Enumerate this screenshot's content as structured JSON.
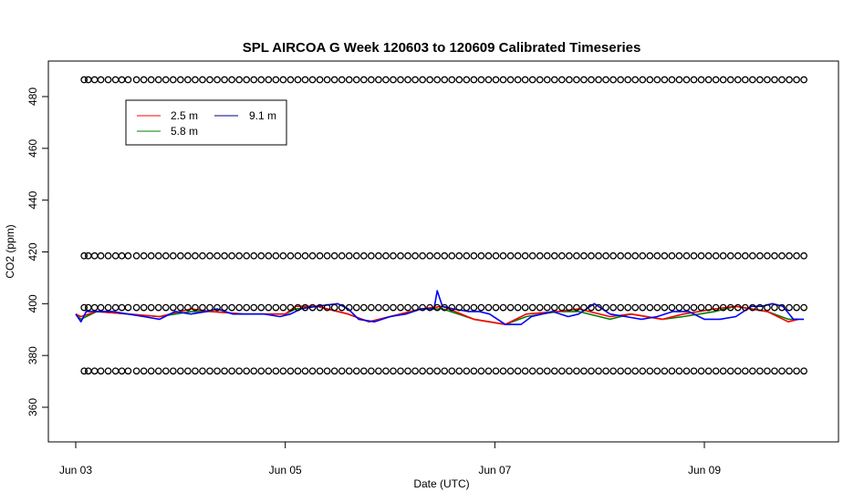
{
  "chart_data": {
    "type": "line",
    "title": "SPL AIRCOA G  Week 120603 to 120609  Calibrated Timeseries",
    "xlabel": "Date (UTC)",
    "ylabel": "CO2 (ppm)",
    "x_tick_labels": [
      "Jun 03",
      "Jun 05",
      "Jun 07",
      "Jun 09"
    ],
    "x_tick_values": [
      0,
      2,
      4,
      6
    ],
    "x_range": [
      0,
      7
    ],
    "y_tick_labels": [
      "360",
      "380",
      "400",
      "420",
      "440",
      "460",
      "480"
    ],
    "y_tick_values": [
      360,
      380,
      400,
      420,
      440,
      460,
      480
    ],
    "y_range": [
      354,
      489
    ],
    "grid": false,
    "legend": {
      "placement": "top-left",
      "entries": [
        {
          "label": "2.5 m",
          "color": "#ff0000"
        },
        {
          "label": "9.1 m",
          "color": "#000080"
        },
        {
          "label": "5.8 m",
          "color": "#008000"
        }
      ]
    },
    "series": [
      {
        "name": "2.5 m",
        "color": "#ff0000",
        "x": [
          0.0,
          0.05,
          0.2,
          0.5,
          0.8,
          1.1,
          1.3,
          1.6,
          2.0,
          2.1,
          2.3,
          2.6,
          2.8,
          3.1,
          3.3,
          3.5,
          3.8,
          4.1,
          4.3,
          4.6,
          4.8,
          5.1,
          5.3,
          5.6,
          5.8,
          6.1,
          6.3,
          6.6,
          6.8,
          6.9
        ],
        "y": [
          396,
          395,
          397,
          396,
          395,
          398,
          397,
          396,
          396,
          399,
          399,
          396,
          393,
          396,
          398,
          399,
          394,
          392,
          396,
          397,
          398,
          395,
          396,
          394,
          396,
          398,
          399,
          397,
          393,
          394
        ]
      },
      {
        "name": "5.8 m",
        "color": "#008000",
        "x": [
          0.0,
          0.05,
          0.2,
          0.5,
          0.8,
          1.1,
          1.3,
          1.6,
          2.0,
          2.1,
          2.3,
          2.6,
          2.8,
          3.1,
          3.3,
          3.5,
          3.8,
          4.1,
          4.3,
          4.6,
          4.8,
          5.1,
          5.3,
          5.6,
          5.8,
          6.1,
          6.3,
          6.6,
          6.8,
          6.9
        ],
        "y": [
          396,
          394,
          397,
          396,
          395,
          397,
          397,
          396,
          396,
          398,
          399,
          396,
          393,
          396,
          398,
          398,
          394,
          392,
          395,
          397,
          397,
          394,
          396,
          394,
          395,
          397,
          399,
          397,
          394,
          394
        ]
      },
      {
        "name": "9.1 m",
        "color": "#0000ff",
        "x": [
          0.0,
          0.05,
          0.1,
          0.2,
          0.35,
          0.5,
          0.65,
          0.8,
          0.95,
          1.1,
          1.25,
          1.35,
          1.5,
          1.65,
          1.8,
          1.95,
          2.05,
          2.15,
          2.3,
          2.5,
          2.6,
          2.7,
          2.85,
          3.0,
          3.15,
          3.3,
          3.42,
          3.45,
          3.5,
          3.6,
          3.75,
          3.85,
          3.95,
          4.1,
          4.25,
          4.35,
          4.45,
          4.55,
          4.7,
          4.8,
          4.95,
          5.1,
          5.25,
          5.4,
          5.55,
          5.7,
          5.85,
          6.0,
          6.15,
          6.3,
          6.45,
          6.55,
          6.65,
          6.75,
          6.85,
          6.95
        ],
        "y": [
          396,
          393,
          397,
          397,
          397,
          396,
          395,
          394,
          397,
          396,
          397,
          398,
          396,
          396,
          396,
          395,
          396,
          398,
          399,
          400,
          398,
          394,
          393,
          395,
          396,
          398,
          398,
          405,
          399,
          398,
          397,
          397,
          396,
          392,
          392,
          395,
          396,
          397,
          395,
          396,
          400,
          396,
          395,
          394,
          395,
          397,
          397,
          394,
          394,
          395,
          399,
          399,
          400,
          399,
          394,
          394
        ]
      }
    ],
    "flag_markers": {
      "levels": [
        374,
        398.5,
        418.5,
        486.5
      ],
      "x": [
        0.08,
        0.12,
        0.18,
        0.24,
        0.31,
        0.38,
        0.44,
        0.5,
        0.58,
        0.65,
        0.72,
        0.79,
        0.86,
        0.93,
        1.0,
        1.07,
        1.14,
        1.21,
        1.28,
        1.35,
        1.42,
        1.49,
        1.56,
        1.63,
        1.7,
        1.77,
        1.84,
        1.91,
        1.98,
        2.05,
        2.12,
        2.19,
        2.26,
        2.33,
        2.4,
        2.47,
        2.54,
        2.61,
        2.68,
        2.75,
        2.82,
        2.89,
        2.96,
        3.03,
        3.1,
        3.17,
        3.24,
        3.31,
        3.38,
        3.45,
        3.52,
        3.59,
        3.66,
        3.73,
        3.8,
        3.87,
        3.94,
        4.01,
        4.08,
        4.15,
        4.22,
        4.29,
        4.36,
        4.43,
        4.5,
        4.57,
        4.64,
        4.71,
        4.78,
        4.85,
        4.92,
        4.99,
        5.06,
        5.13,
        5.2,
        5.27,
        5.34,
        5.41,
        5.48,
        5.55,
        5.62,
        5.69,
        5.76,
        5.83,
        5.9,
        5.97,
        6.04,
        6.11,
        6.18,
        6.25,
        6.32,
        6.39,
        6.46,
        6.53,
        6.6,
        6.67,
        6.74,
        6.81,
        6.88,
        6.95
      ]
    }
  }
}
